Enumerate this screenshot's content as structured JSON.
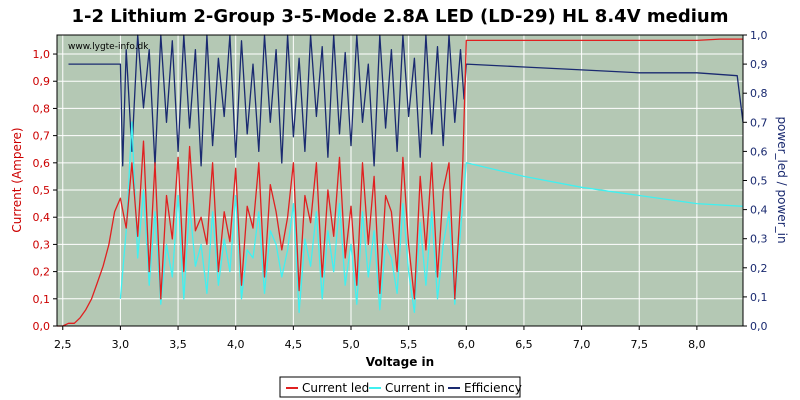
{
  "chart_data": {
    "type": "line",
    "title": "1-2 Lithium 2-Group 3-5-Mode 2.8A LED (LD-29) HL 8.4V medium",
    "watermark": "www.lygte-info.dk",
    "xlabel": "Voltage in",
    "ylabel_left": "Current (Ampere)",
    "ylabel_right": "power_led / power_in",
    "xlim": [
      2.45,
      8.4
    ],
    "ylim_left": [
      0,
      1.07
    ],
    "ylim_right": [
      0,
      1.0
    ],
    "x_ticks": [
      "2,5",
      "3,0",
      "3,5",
      "4,0",
      "4,5",
      "5,0",
      "5,5",
      "6,0",
      "6,5",
      "7,0",
      "7,5",
      "8,0"
    ],
    "x_tick_values": [
      2.5,
      3.0,
      3.5,
      4.0,
      4.5,
      5.0,
      5.5,
      6.0,
      6.5,
      7.0,
      7.5,
      8.0
    ],
    "y_ticks_left": [
      "0,0",
      "0,1",
      "0,2",
      "0,3",
      "0,4",
      "0,5",
      "0,6",
      "0,7",
      "0,8",
      "0,9",
      "1,0"
    ],
    "y_ticks_right": [
      "0,0",
      "0,1",
      "0,2",
      "0,3",
      "0,4",
      "0,5",
      "0,6",
      "0,7",
      "0,8",
      "0,9",
      "1,0"
    ],
    "grid": true,
    "legend_position": "bottom-center",
    "colors": {
      "plot_bg": "#b4c8b4",
      "grid": "#ffffff",
      "current_led": "#e02020",
      "current_in": "#40f0f0",
      "efficiency": "#1a2a70",
      "left_axis": "#cc0000",
      "right_axis": "#1a2a70"
    },
    "series": [
      {
        "name": "Current led",
        "axis": "left",
        "x": [
          2.45,
          2.5,
          2.55,
          2.6,
          2.65,
          2.7,
          2.75,
          2.8,
          2.85,
          2.9,
          2.95,
          3.0,
          3.05,
          3.1,
          3.15,
          3.2,
          3.25,
          3.3,
          3.35,
          3.4,
          3.45,
          3.5,
          3.55,
          3.6,
          3.65,
          3.7,
          3.75,
          3.8,
          3.85,
          3.9,
          3.95,
          4.0,
          4.05,
          4.1,
          4.15,
          4.2,
          4.25,
          4.3,
          4.35,
          4.4,
          4.45,
          4.5,
          4.55,
          4.6,
          4.65,
          4.7,
          4.75,
          4.8,
          4.85,
          4.9,
          4.95,
          5.0,
          5.05,
          5.1,
          5.15,
          5.2,
          5.25,
          5.3,
          5.35,
          5.4,
          5.45,
          5.5,
          5.55,
          5.6,
          5.65,
          5.7,
          5.75,
          5.8,
          5.85,
          5.9,
          5.95,
          5.97,
          6.0,
          6.5,
          7.0,
          7.5,
          8.0,
          8.2,
          8.4
        ],
        "y": [
          0.0,
          0.0,
          0.01,
          0.01,
          0.03,
          0.06,
          0.1,
          0.16,
          0.22,
          0.3,
          0.42,
          0.47,
          0.36,
          0.6,
          0.33,
          0.68,
          0.2,
          0.6,
          0.1,
          0.48,
          0.32,
          0.62,
          0.2,
          0.66,
          0.35,
          0.4,
          0.3,
          0.6,
          0.2,
          0.42,
          0.31,
          0.58,
          0.15,
          0.44,
          0.36,
          0.6,
          0.18,
          0.52,
          0.42,
          0.28,
          0.4,
          0.6,
          0.13,
          0.48,
          0.38,
          0.6,
          0.18,
          0.5,
          0.33,
          0.62,
          0.25,
          0.44,
          0.15,
          0.6,
          0.3,
          0.55,
          0.12,
          0.48,
          0.42,
          0.2,
          0.62,
          0.3,
          0.1,
          0.55,
          0.28,
          0.6,
          0.18,
          0.5,
          0.6,
          0.1,
          0.45,
          0.6,
          1.05,
          1.05,
          1.05,
          1.05,
          1.05,
          1.055,
          1.055
        ]
      },
      {
        "name": "Current in",
        "axis": "left",
        "x": [
          3.0,
          3.05,
          3.1,
          3.15,
          3.2,
          3.25,
          3.3,
          3.35,
          3.4,
          3.45,
          3.5,
          3.55,
          3.6,
          3.65,
          3.7,
          3.75,
          3.8,
          3.85,
          3.9,
          3.95,
          4.0,
          4.05,
          4.1,
          4.15,
          4.2,
          4.25,
          4.3,
          4.35,
          4.4,
          4.45,
          4.5,
          4.55,
          4.6,
          4.65,
          4.7,
          4.75,
          4.8,
          4.85,
          4.9,
          4.95,
          5.0,
          5.05,
          5.1,
          5.15,
          5.2,
          5.25,
          5.3,
          5.35,
          5.4,
          5.45,
          5.5,
          5.55,
          5.6,
          5.65,
          5.7,
          5.75,
          5.8,
          5.85,
          5.9,
          5.95,
          6.0,
          6.5,
          7.0,
          7.5,
          8.0,
          8.4
        ],
        "y": [
          0.1,
          0.35,
          0.75,
          0.25,
          0.5,
          0.15,
          0.42,
          0.08,
          0.3,
          0.18,
          0.48,
          0.1,
          0.45,
          0.22,
          0.3,
          0.12,
          0.42,
          0.15,
          0.32,
          0.2,
          0.48,
          0.1,
          0.28,
          0.25,
          0.42,
          0.12,
          0.35,
          0.3,
          0.18,
          0.28,
          0.45,
          0.05,
          0.32,
          0.22,
          0.42,
          0.1,
          0.35,
          0.2,
          0.45,
          0.15,
          0.3,
          0.08,
          0.42,
          0.18,
          0.35,
          0.06,
          0.3,
          0.25,
          0.12,
          0.45,
          0.2,
          0.05,
          0.38,
          0.15,
          0.42,
          0.1,
          0.3,
          0.42,
          0.08,
          0.35,
          0.6,
          0.55,
          0.51,
          0.48,
          0.45,
          0.44
        ]
      },
      {
        "name": "Efficiency",
        "axis": "right",
        "x": [
          2.55,
          3.0,
          3.02,
          3.05,
          3.1,
          3.15,
          3.2,
          3.25,
          3.3,
          3.35,
          3.4,
          3.45,
          3.5,
          3.55,
          3.6,
          3.65,
          3.7,
          3.75,
          3.8,
          3.85,
          3.9,
          3.95,
          4.0,
          4.05,
          4.1,
          4.15,
          4.2,
          4.25,
          4.3,
          4.35,
          4.4,
          4.45,
          4.5,
          4.55,
          4.6,
          4.65,
          4.7,
          4.75,
          4.8,
          4.85,
          4.9,
          4.95,
          5.0,
          5.05,
          5.1,
          5.15,
          5.2,
          5.25,
          5.3,
          5.35,
          5.4,
          5.45,
          5.5,
          5.55,
          5.6,
          5.65,
          5.7,
          5.75,
          5.8,
          5.85,
          5.9,
          5.95,
          5.98,
          6.0,
          6.5,
          7.0,
          7.5,
          8.0,
          8.35,
          8.4
        ],
        "y": [
          0.9,
          0.9,
          0.55,
          0.95,
          0.6,
          1.0,
          0.75,
          0.95,
          0.55,
          1.0,
          0.7,
          0.98,
          0.6,
          1.0,
          0.68,
          0.95,
          0.55,
          1.0,
          0.62,
          0.92,
          0.72,
          1.0,
          0.58,
          0.98,
          0.66,
          0.9,
          0.6,
          1.0,
          0.7,
          0.95,
          0.56,
          1.0,
          0.65,
          0.92,
          0.6,
          1.0,
          0.72,
          0.96,
          0.58,
          1.0,
          0.66,
          0.94,
          0.62,
          1.0,
          0.7,
          0.9,
          0.55,
          1.0,
          0.68,
          0.95,
          0.6,
          1.0,
          0.72,
          0.92,
          0.58,
          1.0,
          0.66,
          0.96,
          0.62,
          1.0,
          0.7,
          0.95,
          0.78,
          0.9,
          0.89,
          0.88,
          0.87,
          0.87,
          0.86,
          0.7
        ]
      }
    ]
  }
}
